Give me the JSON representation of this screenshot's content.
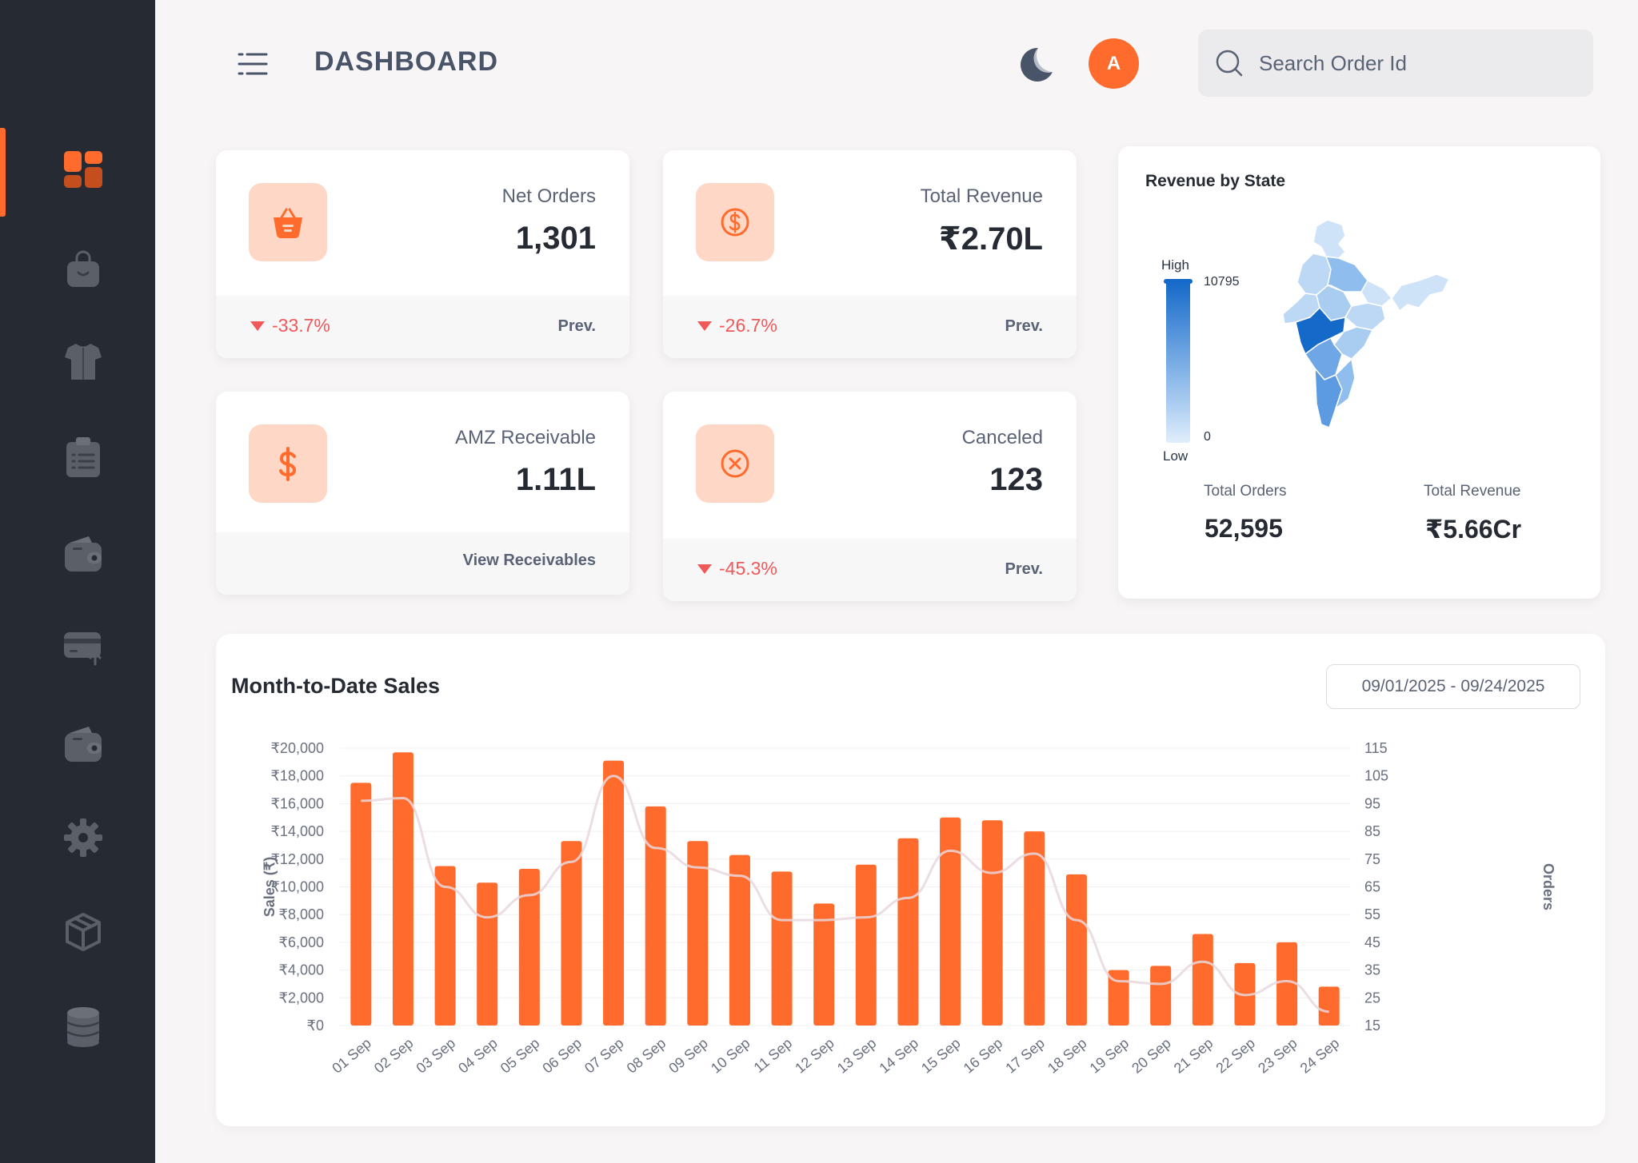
{
  "header": {
    "title": "DASHBOARD",
    "avatar_initial": "A",
    "search_placeholder": "Search Order Id"
  },
  "sidebar": {
    "items": [
      {
        "icon": "dashboard-grid-icon",
        "active": true
      },
      {
        "icon": "shopping-bag-icon"
      },
      {
        "icon": "tshirt-icon"
      },
      {
        "icon": "clipboard-list-icon"
      },
      {
        "icon": "wallet-icon"
      },
      {
        "icon": "card-upload-icon"
      },
      {
        "icon": "wallet-icon"
      },
      {
        "icon": "gear-icon"
      },
      {
        "icon": "box-icon"
      },
      {
        "icon": "database-icon"
      }
    ]
  },
  "colors": {
    "accent": "#ff6b2c",
    "negative": "#f0585a",
    "sidebar_bg": "#262b33",
    "map_high": "#1469c9"
  },
  "stats": [
    {
      "label": "Net Orders",
      "value": "1,301",
      "change": "-33.7%",
      "link": "Prev.",
      "icon": "basket-icon"
    },
    {
      "label": "Total Revenue",
      "value": "₹2.70L",
      "change": "-26.7%",
      "link": "Prev.",
      "icon": "coin-icon"
    },
    {
      "label": "AMZ Receivable",
      "value": "1.11L",
      "change": "",
      "link": "View Receivables",
      "icon": "dollar-icon"
    },
    {
      "label": "Canceled",
      "value": "123",
      "change": "-45.3%",
      "link": "Prev.",
      "icon": "cancel-circle-icon"
    }
  ],
  "map": {
    "title": "Revenue by State",
    "legend_high": "High",
    "legend_low": "Low",
    "legend_max": "10795",
    "legend_min": "0",
    "total_orders_label": "Total Orders",
    "total_orders_value": "52,595",
    "total_revenue_label": "Total Revenue",
    "total_revenue_value": "₹5.66Cr"
  },
  "sales": {
    "title": "Month-to-Date Sales",
    "date_range": "09/01/2025 - 09/24/2025"
  },
  "chart_data": {
    "type": "bar",
    "title": "Month-to-Date Sales",
    "categories": [
      "01 Sep",
      "02 Sep",
      "03 Sep",
      "04 Sep",
      "05 Sep",
      "06 Sep",
      "07 Sep",
      "08 Sep",
      "09 Sep",
      "10 Sep",
      "11 Sep",
      "12 Sep",
      "13 Sep",
      "14 Sep",
      "15 Sep",
      "16 Sep",
      "17 Sep",
      "18 Sep",
      "19 Sep",
      "20 Sep",
      "21 Sep",
      "22 Sep",
      "23 Sep",
      "24 Sep"
    ],
    "ylabel": "Sales (₹)",
    "y2label": "Orders",
    "ylim": [
      0,
      20000
    ],
    "y2lim": [
      15,
      115
    ],
    "yticks": [
      "₹0",
      "₹2,000",
      "₹4,000",
      "₹6,000",
      "₹8,000",
      "₹10,000",
      "₹12,000",
      "₹14,000",
      "₹16,000",
      "₹18,000",
      "₹20,000"
    ],
    "y2ticks": [
      "15",
      "25",
      "35",
      "45",
      "55",
      "65",
      "75",
      "85",
      "95",
      "105",
      "115"
    ],
    "series": [
      {
        "type": "bar",
        "axis": "left",
        "color": "#ff6b2c",
        "values": [
          17500,
          19700,
          11500,
          10300,
          11300,
          13300,
          19100,
          15800,
          13300,
          12300,
          11100,
          8800,
          11600,
          13500,
          15000,
          14800,
          14000,
          10900,
          4000,
          4300,
          6600,
          4500,
          6000,
          2800
        ]
      },
      {
        "type": "line",
        "axis": "right",
        "color": "#e9d7dd",
        "values": [
          96,
          97,
          65,
          54,
          62,
          74,
          105,
          79,
          72,
          69,
          53,
          53,
          54,
          61,
          78,
          70,
          77,
          53,
          31,
          30,
          38,
          26,
          31,
          20
        ]
      }
    ],
    "grid": true
  }
}
